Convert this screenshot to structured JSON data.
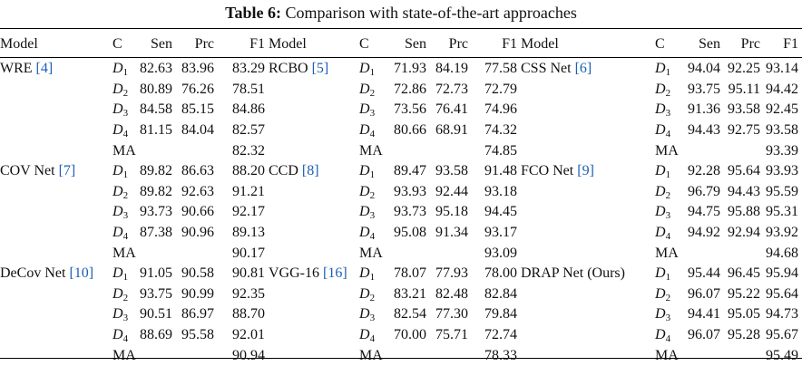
{
  "caption": {
    "label": "Table 6:",
    "text": "Comparison with state-of-the-art approaches"
  },
  "headers": [
    "Model",
    "C",
    "Sen",
    "Prc",
    "F1"
  ],
  "groups": [
    [
      {
        "model": "WRE",
        "cite": "[4]",
        "rows": [
          [
            "1",
            "82.63",
            "83.96",
            "83.29"
          ],
          [
            "2",
            "80.89",
            "76.26",
            "78.51"
          ],
          [
            "3",
            "84.58",
            "85.15",
            "84.86"
          ],
          [
            "4",
            "81.15",
            "84.04",
            "82.57"
          ]
        ],
        "ma": "82.32"
      },
      {
        "model": "RCBO",
        "cite": "[5]",
        "rows": [
          [
            "1",
            "71.93",
            "84.19",
            "77.58"
          ],
          [
            "2",
            "72.86",
            "72.73",
            "72.79"
          ],
          [
            "3",
            "73.56",
            "76.41",
            "74.96"
          ],
          [
            "4",
            "80.66",
            "68.91",
            "74.32"
          ]
        ],
        "ma": "74.85"
      },
      {
        "model": "CSS Net",
        "cite": "[6]",
        "rows": [
          [
            "1",
            "94.04",
            "92.25",
            "93.14"
          ],
          [
            "2",
            "93.75",
            "95.11",
            "94.42"
          ],
          [
            "3",
            "91.36",
            "93.58",
            "92.45"
          ],
          [
            "4",
            "94.43",
            "92.75",
            "93.58"
          ]
        ],
        "ma": "93.39"
      }
    ],
    [
      {
        "model": "COV Net",
        "cite": "[7]",
        "rows": [
          [
            "1",
            "89.82",
            "86.63",
            "88.20"
          ],
          [
            "2",
            "89.82",
            "92.63",
            "91.21"
          ],
          [
            "3",
            "93.73",
            "90.66",
            "92.17"
          ],
          [
            "4",
            "87.38",
            "90.96",
            "89.13"
          ]
        ],
        "ma": "90.17"
      },
      {
        "model": "CCD",
        "cite": "[8]",
        "rows": [
          [
            "1",
            "89.47",
            "93.58",
            "91.48"
          ],
          [
            "2",
            "93.93",
            "92.44",
            "93.18"
          ],
          [
            "3",
            "93.73",
            "95.18",
            "94.45"
          ],
          [
            "4",
            "95.08",
            "91.34",
            "93.17"
          ]
        ],
        "ma": "93.09"
      },
      {
        "model": "FCO Net",
        "cite": "[9]",
        "rows": [
          [
            "1",
            "92.28",
            "95.64",
            "93.93"
          ],
          [
            "2",
            "96.79",
            "94.43",
            "95.59"
          ],
          [
            "3",
            "94.75",
            "95.88",
            "95.31"
          ],
          [
            "4",
            "94.92",
            "92.94",
            "93.92"
          ]
        ],
        "ma": "94.68"
      }
    ],
    [
      {
        "model": "DeCov Net",
        "cite": "[10]",
        "rows": [
          [
            "1",
            "91.05",
            "90.58",
            "90.81"
          ],
          [
            "2",
            "93.75",
            "90.99",
            "92.35"
          ],
          [
            "3",
            "90.51",
            "86.97",
            "88.70"
          ],
          [
            "4",
            "88.69",
            "95.58",
            "92.01"
          ]
        ],
        "ma": "90.94"
      },
      {
        "model": "VGG-16",
        "cite": "[16]",
        "rows": [
          [
            "1",
            "78.07",
            "77.93",
            "78.00"
          ],
          [
            "2",
            "83.21",
            "82.48",
            "82.84"
          ],
          [
            "3",
            "82.54",
            "77.30",
            "79.84"
          ],
          [
            "4",
            "70.00",
            "75.71",
            "72.74"
          ]
        ],
        "ma": "78.33"
      },
      {
        "model": "DRAP Net (Ours)",
        "cite": "",
        "rows": [
          [
            "1",
            "95.44",
            "96.45",
            "95.94"
          ],
          [
            "2",
            "96.07",
            "95.22",
            "95.64"
          ],
          [
            "3",
            "94.41",
            "95.05",
            "94.73"
          ],
          [
            "4",
            "96.07",
            "95.28",
            "95.67"
          ]
        ],
        "ma": "95.49"
      }
    ]
  ],
  "dataset_letter": "D",
  "ma_label": "MA"
}
